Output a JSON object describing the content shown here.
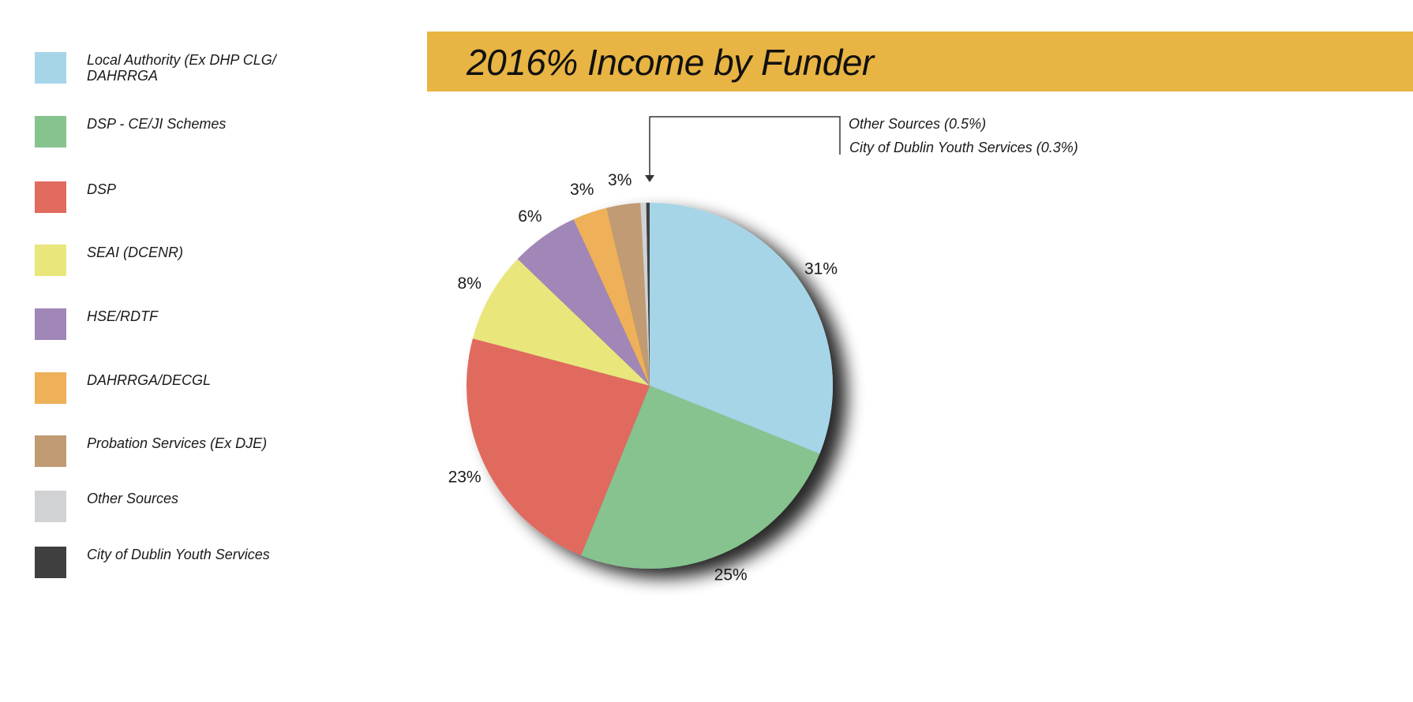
{
  "colors": {
    "title_bar": "#e8b443",
    "callout_line": "#333333"
  },
  "title": "2016% Income by Funder",
  "legend": {
    "items": [
      {
        "label": "Local Authority (Ex DHP CLG/ DAHRRGA",
        "color": "#a6d5e7"
      },
      {
        "label": "DSP - CE/JI Schemes",
        "color": "#86c38f"
      },
      {
        "label": "DSP",
        "color": "#e16b5e"
      },
      {
        "label": "SEAI (DCENR)",
        "color": "#e9e77b"
      },
      {
        "label": "HSE/RDTF",
        "color": "#a186b8"
      },
      {
        "label": "DAHRRGA/DECGL",
        "color": "#eeb058"
      },
      {
        "label": "Probation Services (Ex DJE)",
        "color": "#c09b73"
      },
      {
        "label": "Other Sources",
        "color": "#d1d2d4"
      },
      {
        "label": "City of Dublin Youth Services",
        "color": "#3f3f40"
      }
    ]
  },
  "callout": {
    "line1": "Other Sources (0.5%)",
    "line2": "City of Dublin Youth Services (0.3%)"
  },
  "chart_data": {
    "type": "pie",
    "title": "2016% Income by Funder",
    "start": "12 o'clock, clockwise",
    "slices": [
      {
        "name": "Local Authority (Ex DHP CLG/ DAHRRGA",
        "value": 31,
        "label": "31%",
        "color": "#a6d5e7"
      },
      {
        "name": "DSP - CE/JI Schemes",
        "value": 25,
        "label": "25%",
        "color": "#86c38f"
      },
      {
        "name": "DSP",
        "value": 23,
        "label": "23%",
        "color": "#e16b5e"
      },
      {
        "name": "SEAI (DCENR)",
        "value": 8,
        "label": "8%",
        "color": "#e9e77b"
      },
      {
        "name": "HSE/RDTF",
        "value": 6,
        "label": "6%",
        "color": "#a186b8"
      },
      {
        "name": "DAHRRGA/DECGL",
        "value": 3,
        "label": "3%",
        "color": "#eeb058"
      },
      {
        "name": "Probation Services (Ex DJE)",
        "value": 3,
        "label": "3%",
        "color": "#c09b73"
      },
      {
        "name": "Other Sources",
        "value": 0.5,
        "label": "",
        "color": "#d1d2d4"
      },
      {
        "name": "City of Dublin Youth Services",
        "value": 0.3,
        "label": "",
        "color": "#3f3f40"
      }
    ]
  }
}
